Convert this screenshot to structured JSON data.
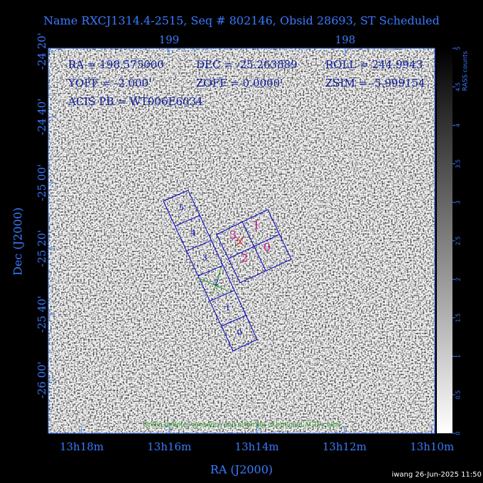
{
  "header": {
    "title": "Name RXCJ1314.4-2515, Seq # 802146, Obsid 28693, ST Scheduled"
  },
  "axes": {
    "top_ticks": [
      "199",
      "198"
    ],
    "left_ticks": [
      "-24 20'",
      "-24 40'",
      "-25 00'",
      "-25 20'",
      "-25 40'",
      "-26 00'"
    ],
    "bottom_ticks": [
      "13h18m",
      "13h16m",
      "13h14m",
      "13h12m",
      "13h10m"
    ],
    "x_label": "RA (J2000)",
    "y_label": "Dec (J2000)"
  },
  "info": {
    "line1": [
      "RA = 198.575000",
      "DEC = -25.263889",
      "ROLL = 244.9943"
    ],
    "line2": [
      "YOFF = -2.000'",
      "ZOFF = 0.0000'",
      "ZSIM = -5.999154"
    ],
    "line3": "ACIS PB = WT006E6034"
  },
  "chips": {
    "s_array": [
      "5",
      "4",
      "3",
      "2",
      "1",
      "0"
    ],
    "i_array": [
      "1",
      "0",
      "3",
      "2"
    ]
  },
  "note": "Green denotes presence and ordering of optional ACIS chips",
  "colorbar": {
    "label": "RASS counts",
    "ticks": [
      "0",
      "0.5",
      "1",
      "1.5",
      "2",
      "2.5",
      "3",
      "3.5",
      "4",
      "4.5",
      "5"
    ]
  },
  "footer": "iwang 26-Jun-2025 11:50"
}
